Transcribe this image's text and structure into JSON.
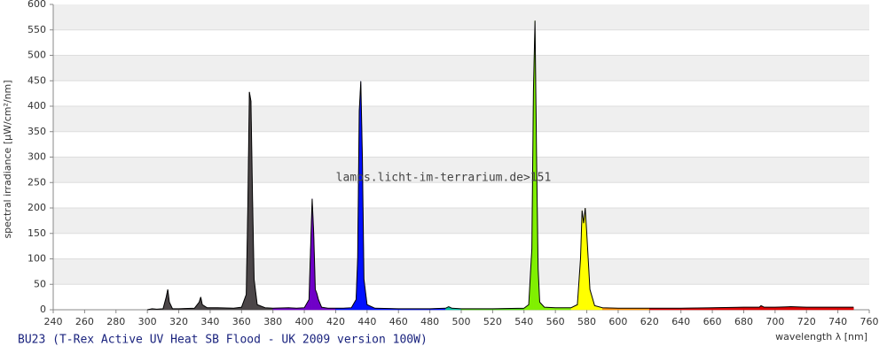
{
  "chart_data": {
    "type": "area",
    "title": "BU23 (T-Rex Active UV Heat SB Flood - UK 2009 version 100W)",
    "xlabel": "wavelength λ [nm]",
    "ylabel": "spectral irradiance [µW/cm²/nm]",
    "watermark": "lamps.licht-im-terrarium.de>151",
    "xlim": [
      240,
      760
    ],
    "ylim": [
      0,
      600
    ],
    "xticks": [
      240,
      260,
      280,
      300,
      320,
      340,
      360,
      380,
      400,
      420,
      440,
      460,
      480,
      500,
      520,
      540,
      560,
      580,
      600,
      620,
      640,
      660,
      680,
      700,
      720,
      740,
      760
    ],
    "yticks": [
      0,
      50,
      100,
      150,
      200,
      250,
      300,
      350,
      400,
      450,
      500,
      550,
      600
    ],
    "grid": true,
    "line_color": "#000000",
    "color_bands": [
      {
        "from": 300,
        "color": "#4b4648"
      },
      {
        "from": 380,
        "color": "#7000c8"
      },
      {
        "from": 420,
        "color": "#0010ff"
      },
      {
        "from": 490,
        "color": "#00c0a0"
      },
      {
        "from": 500,
        "color": "#40d000"
      },
      {
        "from": 540,
        "color": "#80f000"
      },
      {
        "from": 570,
        "color": "#ffff00"
      },
      {
        "from": 590,
        "color": "#ff9000"
      },
      {
        "from": 620,
        "color": "#e00000"
      }
    ],
    "x": [
      300,
      303,
      306,
      310,
      312,
      313,
      314,
      316,
      320,
      330,
      333,
      334,
      335,
      338,
      345,
      355,
      360,
      363,
      364,
      365,
      366,
      367,
      368,
      370,
      375,
      380,
      390,
      395,
      400,
      403,
      404,
      405,
      406,
      407,
      408,
      409,
      411,
      415,
      420,
      425,
      430,
      433,
      434,
      435,
      436,
      437,
      438,
      440,
      445,
      460,
      480,
      490,
      492,
      494,
      500,
      520,
      540,
      543,
      545,
      546,
      547,
      548,
      549,
      550,
      553,
      560,
      570,
      574,
      576,
      577,
      578,
      579,
      580,
      582,
      585,
      590,
      600,
      620,
      640,
      660,
      680,
      690,
      691,
      693,
      700,
      710,
      720,
      730,
      740,
      750
    ],
    "values": [
      0,
      2,
      1,
      2,
      25,
      40,
      15,
      2,
      2,
      3,
      15,
      25,
      10,
      4,
      4,
      3,
      5,
      30,
      200,
      428,
      410,
      220,
      60,
      10,
      4,
      3,
      4,
      3,
      4,
      20,
      120,
      218,
      150,
      40,
      32,
      20,
      5,
      3,
      3,
      3,
      4,
      20,
      100,
      390,
      449,
      300,
      60,
      10,
      3,
      2,
      2,
      3,
      6,
      3,
      2,
      2,
      3,
      10,
      120,
      430,
      568,
      300,
      80,
      15,
      5,
      4,
      4,
      10,
      100,
      195,
      170,
      200,
      150,
      40,
      8,
      4,
      3,
      3,
      3,
      4,
      5,
      5,
      8,
      5,
      5,
      6,
      5,
      5,
      5,
      5
    ]
  }
}
